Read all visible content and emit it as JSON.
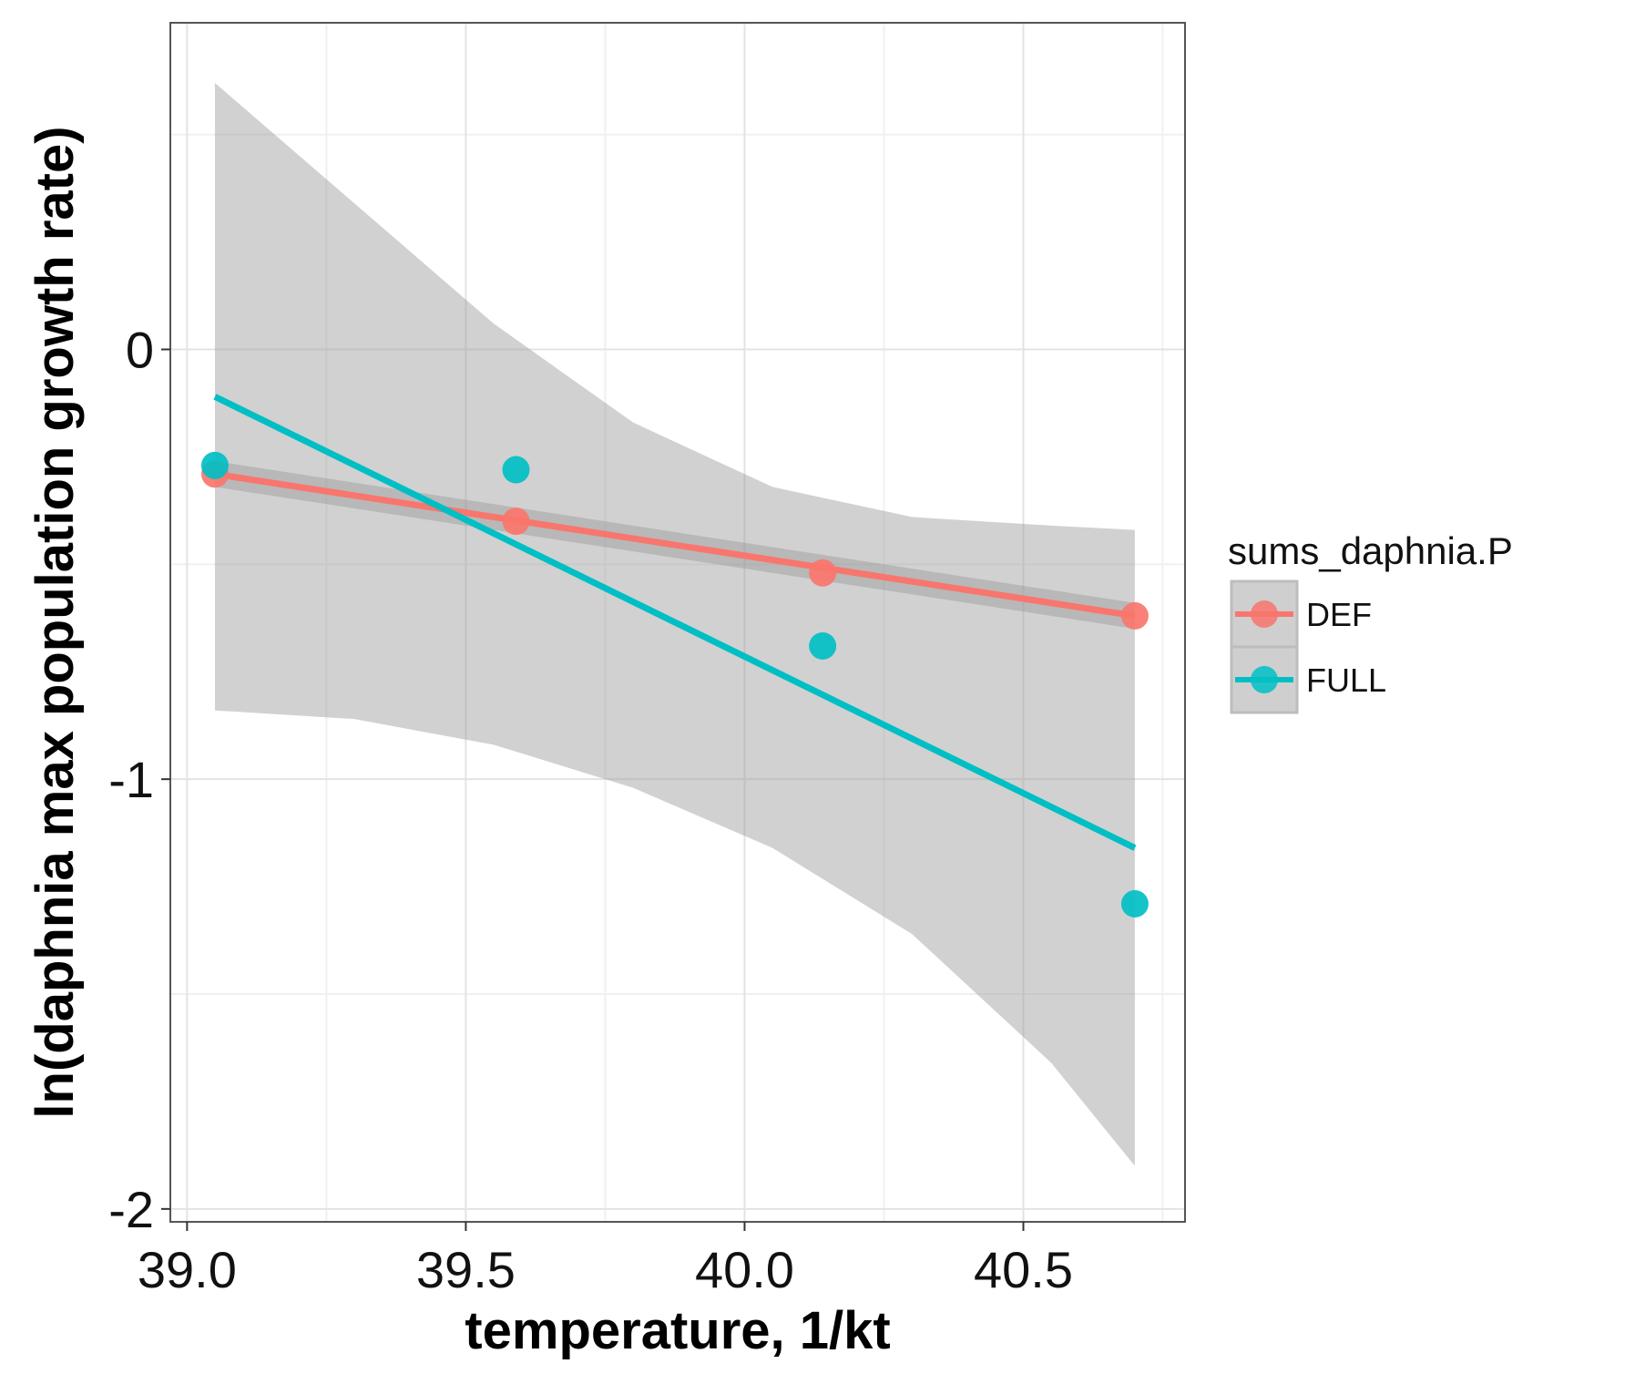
{
  "chart_data": {
    "type": "scatter",
    "xlabel": "temperature, 1/kt",
    "ylabel": "ln(daphnia max population growth rate)",
    "xlim": [
      38.97,
      40.79
    ],
    "ylim": [
      -2.03,
      0.76
    ],
    "x_ticks": [
      39.0,
      39.5,
      40.0,
      40.5
    ],
    "x_tick_labels": [
      "39.0",
      "39.5",
      "40.0",
      "40.5"
    ],
    "y_ticks": [
      0,
      -1,
      -2
    ],
    "y_tick_labels": [
      "0",
      "-1",
      "-2"
    ],
    "grid": true,
    "legend": {
      "title": "sums_daphnia.P",
      "placement": "right"
    },
    "series": [
      {
        "name": "DEF",
        "color": "#F8766D",
        "points": {
          "x": [
            39.05,
            39.59,
            40.14,
            40.7
          ],
          "y": [
            -0.29,
            -0.4,
            -0.52,
            -0.62
          ]
        },
        "fit": {
          "x": [
            39.05,
            40.7
          ],
          "y": [
            -0.29,
            -0.62
          ]
        },
        "ci_band": {
          "x": [
            39.05,
            40.7
          ],
          "lower": [
            -0.32,
            -0.65
          ],
          "upper": [
            -0.26,
            -0.59
          ]
        }
      },
      {
        "name": "FULL",
        "color": "#00BFC4",
        "points": {
          "x": [
            39.05,
            39.59,
            40.14,
            40.7
          ],
          "y": [
            -0.27,
            -0.28,
            -0.69,
            -1.29
          ]
        },
        "fit": {
          "x": [
            39.05,
            40.7
          ],
          "y": [
            -0.11,
            -1.16
          ]
        },
        "ci_band": {
          "x": [
            39.05,
            39.3,
            39.55,
            39.8,
            40.05,
            40.3,
            40.55,
            40.7
          ],
          "lower": [
            -0.84,
            -0.86,
            -0.92,
            -1.02,
            -1.16,
            -1.36,
            -1.66,
            -1.9
          ],
          "upper": [
            0.62,
            0.34,
            0.06,
            -0.17,
            -0.32,
            -0.39,
            -0.41,
            -0.42
          ]
        }
      }
    ]
  }
}
